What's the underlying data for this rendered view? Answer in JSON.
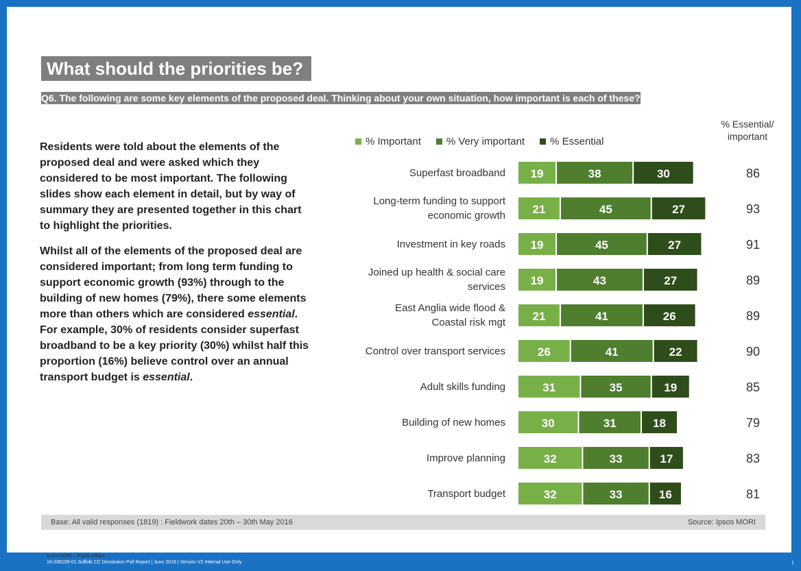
{
  "title": "What should the priorities be?",
  "question": "Q6. The following are some key elements of the proposed deal. Thinking about your own situation, how important is each of these?",
  "body": {
    "para1": "Residents were told about the elements of the proposed deal and were asked which they considered to be most important. The following slides show each element in detail, but by way of summary they are presented together in this chart to highlight the priorities.",
    "para2_a": "Whilst all of the elements of the proposed deal are considered important; from long term funding to support economic growth (93%) through to the building of new homes (79%), there some elements more than others which are considered ",
    "para2_em1": "essential",
    "para2_b": ". For example, 30% of residents consider superfast broadband to be a key priority (30%) whilst half this proportion (16%) believe control over an annual transport budget is ",
    "para2_em2": "essential",
    "para2_c": "."
  },
  "pct_header": "% Essential/ important",
  "base_text": "Base: All valid responses (1819) : Fieldwork dates 20th – 30th May 2016",
  "source_text": "Source: Ipsos MORI",
  "ipsos_label": "Ipsos MORI – Public Affairs",
  "footer_text": "16-036109-01 Suffolk CC Devolution Poll Report | June 2016 | Version V2 Internal Use Only",
  "page_number": "1",
  "colors": {
    "important": "#78b048",
    "very_important": "#4e7e2e",
    "essential": "#2f4d1a",
    "accent_blue": "#1a72c4",
    "title_bg": "#7f7f7f"
  },
  "chart_data": {
    "type": "bar",
    "orientation": "horizontal",
    "stacked": true,
    "categories": [
      "Superfast broadband",
      "Long-term funding to support economic growth",
      "Investment in key roads",
      "Joined up health & social care services",
      "East Anglia wide flood & Coastal risk mgt",
      "Control over transport services",
      "Adult skills funding",
      "Building of new homes",
      "Improve planning",
      "Transport budget"
    ],
    "series": [
      {
        "name": "% Important",
        "values": [
          19,
          21,
          19,
          19,
          21,
          26,
          31,
          30,
          32,
          32
        ]
      },
      {
        "name": "% Very important",
        "values": [
          38,
          45,
          45,
          43,
          41,
          41,
          35,
          31,
          33,
          33
        ]
      },
      {
        "name": "% Essential",
        "values": [
          30,
          27,
          27,
          27,
          26,
          22,
          19,
          18,
          17,
          16
        ]
      }
    ],
    "totals_label": "% Essential/ important",
    "totals": [
      86,
      93,
      91,
      89,
      89,
      90,
      85,
      79,
      83,
      81
    ],
    "legend_position": "top",
    "grid": false
  }
}
